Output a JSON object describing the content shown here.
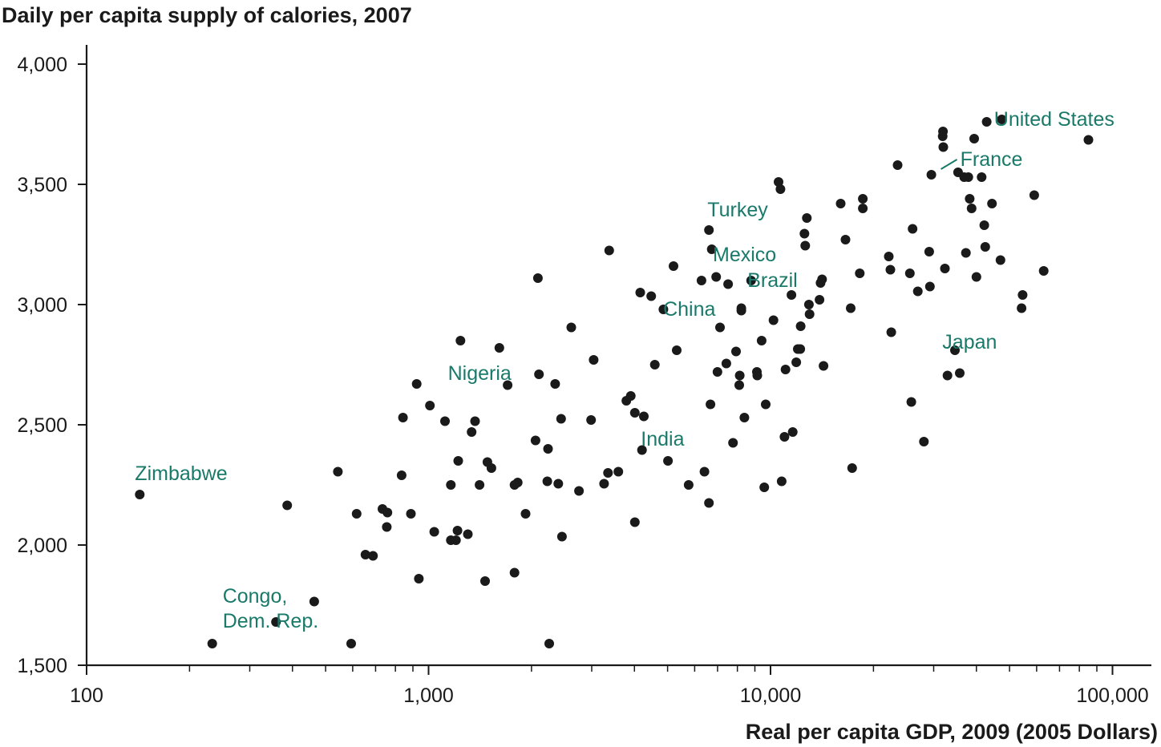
{
  "chart_data": {
    "type": "scatter",
    "title": "Daily per capita supply of calories, 2007",
    "xlabel": "Real per capita GDP, 2009 (2005 Dollars)",
    "ylabel": "Daily per capita supply of calories, 2007",
    "x_scale": "log",
    "xlim": [
      100,
      140000
    ],
    "ylim": [
      1500,
      4150
    ],
    "x_ticks": [
      100,
      1000,
      10000,
      100000
    ],
    "x_tick_labels": [
      "100",
      "1,000",
      "10,000",
      "100,000"
    ],
    "y_ticks": [
      1500,
      2000,
      2500,
      3000,
      3500,
      4000
    ],
    "y_tick_labels": [
      "1,500",
      "2,000",
      "2,500",
      "3,000",
      "3,500",
      "4,000"
    ],
    "label_color": "#1a7a6a",
    "point_color": "#1a1a1a",
    "labeled_points": [
      {
        "label": "United States",
        "x": 42000,
        "y": 3770
      },
      {
        "label": "France",
        "x": 30500,
        "y": 3550
      },
      {
        "label": "Turkey",
        "x": 9800,
        "y": 3480
      },
      {
        "label": "Mexico",
        "x": 6600,
        "y": 3230
      },
      {
        "label": "Brazil",
        "x": 12900,
        "y": 3110
      },
      {
        "label": "China",
        "x": 4700,
        "y": 2980
      },
      {
        "label": "Japan",
        "x": 29800,
        "y": 2810
      },
      {
        "label": "Nigeria",
        "x": 2030,
        "y": 2710
      },
      {
        "label": "India",
        "x": 4000,
        "y": 2390
      },
      {
        "label": "Zimbabwe",
        "x": 143,
        "y": 2210
      },
      {
        "label": "Congo, Dem. Rep.",
        "x": 233,
        "y": 1590
      }
    ],
    "points": [
      [
        143,
        2210
      ],
      [
        233,
        1590
      ],
      [
        358,
        1680
      ],
      [
        386,
        2165
      ],
      [
        463,
        1765
      ],
      [
        543,
        2305
      ],
      [
        594,
        1590
      ],
      [
        616,
        2130
      ],
      [
        654,
        1960
      ],
      [
        688,
        1955
      ],
      [
        733,
        2150
      ],
      [
        755,
        2075
      ],
      [
        758,
        2135
      ],
      [
        834,
        2290
      ],
      [
        842,
        2530
      ],
      [
        888,
        2130
      ],
      [
        923,
        2670
      ],
      [
        937,
        1860
      ],
      [
        1009,
        2580
      ],
      [
        1039,
        2055
      ],
      [
        1117,
        2515
      ],
      [
        1162,
        2020
      ],
      [
        1162,
        2250
      ],
      [
        1203,
        2020
      ],
      [
        1215,
        2060
      ],
      [
        1221,
        2350
      ],
      [
        1240,
        2850
      ],
      [
        1303,
        2045
      ],
      [
        1336,
        2470
      ],
      [
        1368,
        2515
      ],
      [
        1410,
        2250
      ],
      [
        1463,
        1850
      ],
      [
        1486,
        2345
      ],
      [
        1527,
        2320
      ],
      [
        1611,
        2820
      ],
      [
        1703,
        2665
      ],
      [
        1784,
        2250
      ],
      [
        1784,
        1885
      ],
      [
        1823,
        2260
      ],
      [
        1922,
        2130
      ],
      [
        2055,
        2435
      ],
      [
        2088,
        3110
      ],
      [
        2103,
        2710
      ],
      [
        2224,
        2265
      ],
      [
        2235,
        2400
      ],
      [
        2254,
        1590
      ],
      [
        2346,
        2670
      ],
      [
        2395,
        2255
      ],
      [
        2441,
        2525
      ],
      [
        2455,
        2035
      ],
      [
        2614,
        2905
      ],
      [
        2753,
        2225
      ],
      [
        2987,
        2520
      ],
      [
        3039,
        2770
      ],
      [
        3260,
        2255
      ],
      [
        3348,
        2300
      ],
      [
        3374,
        3225
      ],
      [
        3589,
        2305
      ],
      [
        3788,
        2600
      ],
      [
        3903,
        2620
      ],
      [
        4011,
        2550
      ],
      [
        4011,
        2095
      ],
      [
        4158,
        3050
      ],
      [
        4208,
        2395
      ],
      [
        4261,
        2535
      ],
      [
        4478,
        3035
      ],
      [
        4589,
        2750
      ],
      [
        4860,
        2980
      ],
      [
        5012,
        2350
      ],
      [
        5203,
        3160
      ],
      [
        5318,
        2810
      ],
      [
        5761,
        2250
      ],
      [
        6283,
        3100
      ],
      [
        6410,
        2305
      ],
      [
        6605,
        3310
      ],
      [
        6605,
        2175
      ],
      [
        6673,
        2585
      ],
      [
        6731,
        3230
      ],
      [
        6933,
        3115
      ],
      [
        6996,
        2720
      ],
      [
        7115,
        2905
      ],
      [
        7428,
        2755
      ],
      [
        7517,
        3085
      ],
      [
        7767,
        2425
      ],
      [
        7927,
        2805
      ],
      [
        8103,
        2665
      ],
      [
        8126,
        2705
      ],
      [
        8218,
        2985
      ],
      [
        8218,
        2975
      ],
      [
        8387,
        2530
      ],
      [
        8773,
        3100
      ],
      [
        9123,
        2720
      ],
      [
        9149,
        2705
      ],
      [
        9417,
        2850
      ],
      [
        9590,
        2240
      ],
      [
        9681,
        2585
      ],
      [
        10200,
        2935
      ],
      [
        10554,
        3510
      ],
      [
        10691,
        3480
      ],
      [
        10780,
        2265
      ],
      [
        10986,
        2450
      ],
      [
        11063,
        2730
      ],
      [
        11514,
        3040
      ],
      [
        11610,
        2470
      ],
      [
        11893,
        2760
      ],
      [
        12016,
        2815
      ],
      [
        12215,
        2815
      ],
      [
        12251,
        2910
      ],
      [
        12568,
        3295
      ],
      [
        12631,
        3245
      ],
      [
        12768,
        3360
      ],
      [
        12948,
        3000
      ],
      [
        13007,
        2960
      ],
      [
        13908,
        3020
      ],
      [
        14004,
        3090
      ],
      [
        14148,
        3105
      ],
      [
        14291,
        2745
      ],
      [
        16034,
        3420
      ],
      [
        16566,
        3270
      ],
      [
        17160,
        2985
      ],
      [
        17322,
        2320
      ],
      [
        18242,
        3130
      ],
      [
        18619,
        3440
      ],
      [
        18619,
        3400
      ],
      [
        22174,
        3200
      ],
      [
        22413,
        3145
      ],
      [
        22544,
        2885
      ],
      [
        23533,
        3580
      ],
      [
        25560,
        3130
      ],
      [
        25811,
        2595
      ],
      [
        26026,
        3315
      ],
      [
        26962,
        3055
      ],
      [
        28086,
        2430
      ],
      [
        29105,
        3220
      ],
      [
        29246,
        3075
      ],
      [
        29542,
        3540
      ],
      [
        31871,
        3700
      ],
      [
        31940,
        3720
      ],
      [
        32010,
        3655
      ],
      [
        32365,
        3150
      ],
      [
        32915,
        2705
      ],
      [
        34615,
        2810
      ],
      [
        35347,
        3550
      ],
      [
        35754,
        2715
      ],
      [
        36834,
        3530
      ],
      [
        37265,
        3215
      ],
      [
        37890,
        3530
      ],
      [
        38235,
        3440
      ],
      [
        38739,
        3400
      ],
      [
        39407,
        3690
      ],
      [
        40009,
        3115
      ],
      [
        41437,
        3530
      ],
      [
        42172,
        3330
      ],
      [
        42456,
        3240
      ],
      [
        42860,
        3760
      ],
      [
        44418,
        3420
      ],
      [
        47047,
        3185
      ],
      [
        47436,
        3770
      ],
      [
        54219,
        2985
      ],
      [
        54594,
        3040
      ],
      [
        59049,
        3455
      ],
      [
        62939,
        3140
      ],
      [
        85036,
        3685
      ]
    ]
  }
}
